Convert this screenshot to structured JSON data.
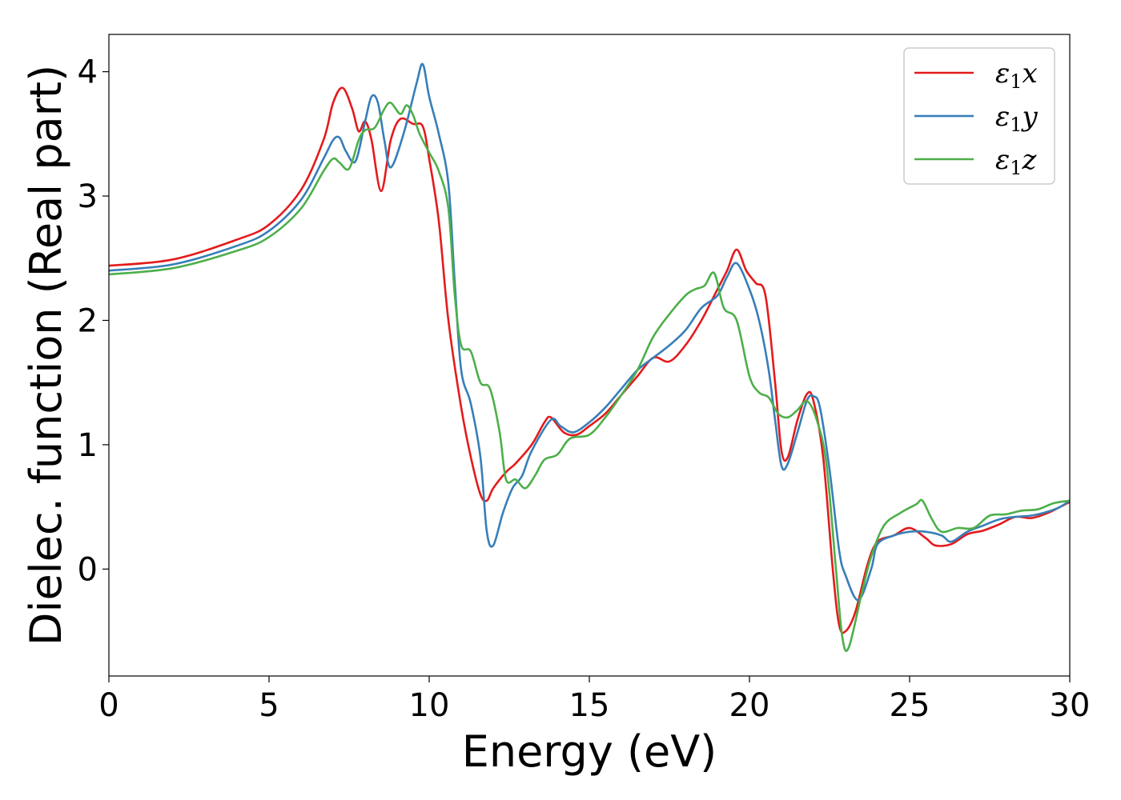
{
  "chart_data": {
    "type": "line",
    "title": "",
    "xlabel": "Energy (eV)",
    "ylabel": "Dielec. function (Real part)",
    "xlim": [
      0,
      30
    ],
    "ylim": [
      -0.86,
      4.3
    ],
    "xticks": [
      0,
      5,
      10,
      15,
      20,
      25,
      30
    ],
    "xtick_labels": [
      "0",
      "5",
      "10",
      "15",
      "20",
      "25",
      "30"
    ],
    "yticks": [
      0,
      1,
      2,
      3,
      4
    ],
    "ytick_labels": [
      "0",
      "1",
      "2",
      "3",
      "4"
    ],
    "grid": false,
    "legend": {
      "placement": "top-right"
    },
    "series": [
      {
        "name": "ε1x",
        "name_main": "ε",
        "name_sub": "1",
        "name_var": "x",
        "color": "#e41a1c",
        "points": [
          [
            0,
            2.44
          ],
          [
            2,
            2.49
          ],
          [
            4,
            2.65
          ],
          [
            5,
            2.77
          ],
          [
            6,
            3.05
          ],
          [
            6.7,
            3.45
          ],
          [
            7.0,
            3.75
          ],
          [
            7.3,
            3.87
          ],
          [
            7.6,
            3.7
          ],
          [
            7.8,
            3.52
          ],
          [
            8.0,
            3.6
          ],
          [
            8.2,
            3.45
          ],
          [
            8.5,
            3.04
          ],
          [
            8.8,
            3.45
          ],
          [
            9.1,
            3.62
          ],
          [
            9.5,
            3.58
          ],
          [
            9.8,
            3.56
          ],
          [
            10.0,
            3.3
          ],
          [
            10.3,
            2.8
          ],
          [
            10.6,
            2.0
          ],
          [
            11.0,
            1.3
          ],
          [
            11.3,
            0.9
          ],
          [
            11.6,
            0.6
          ],
          [
            11.8,
            0.55
          ],
          [
            12.0,
            0.65
          ],
          [
            12.4,
            0.78
          ],
          [
            12.7,
            0.85
          ],
          [
            13.2,
            1.0
          ],
          [
            13.6,
            1.18
          ],
          [
            13.8,
            1.22
          ],
          [
            14.2,
            1.1
          ],
          [
            14.6,
            1.08
          ],
          [
            15.0,
            1.15
          ],
          [
            15.5,
            1.25
          ],
          [
            16.0,
            1.4
          ],
          [
            16.5,
            1.55
          ],
          [
            17.0,
            1.7
          ],
          [
            17.5,
            1.67
          ],
          [
            18.0,
            1.8
          ],
          [
            18.5,
            2.0
          ],
          [
            19.0,
            2.25
          ],
          [
            19.3,
            2.4
          ],
          [
            19.6,
            2.57
          ],
          [
            19.9,
            2.4
          ],
          [
            20.2,
            2.3
          ],
          [
            20.5,
            2.2
          ],
          [
            20.8,
            1.5
          ],
          [
            21.0,
            0.95
          ],
          [
            21.2,
            0.9
          ],
          [
            21.5,
            1.2
          ],
          [
            21.8,
            1.41
          ],
          [
            22.0,
            1.35
          ],
          [
            22.3,
            0.9
          ],
          [
            22.6,
            0.0
          ],
          [
            22.8,
            -0.45
          ],
          [
            23.0,
            -0.5
          ],
          [
            23.3,
            -0.35
          ],
          [
            23.7,
            0.05
          ],
          [
            24.0,
            0.22
          ],
          [
            24.5,
            0.27
          ],
          [
            25.0,
            0.33
          ],
          [
            25.5,
            0.25
          ],
          [
            25.8,
            0.19
          ],
          [
            26.3,
            0.2
          ],
          [
            26.8,
            0.28
          ],
          [
            27.3,
            0.31
          ],
          [
            27.8,
            0.36
          ],
          [
            28.3,
            0.42
          ],
          [
            28.8,
            0.41
          ],
          [
            29.3,
            0.45
          ],
          [
            29.7,
            0.5
          ],
          [
            30.0,
            0.54
          ]
        ]
      },
      {
        "name": "ε1y",
        "name_main": "ε",
        "name_sub": "1",
        "name_var": "y",
        "color": "#377eb8",
        "points": [
          [
            0,
            2.4
          ],
          [
            2,
            2.45
          ],
          [
            4,
            2.6
          ],
          [
            5,
            2.72
          ],
          [
            6,
            2.97
          ],
          [
            6.7,
            3.3
          ],
          [
            7.0,
            3.45
          ],
          [
            7.2,
            3.47
          ],
          [
            7.4,
            3.36
          ],
          [
            7.7,
            3.28
          ],
          [
            8.0,
            3.6
          ],
          [
            8.2,
            3.8
          ],
          [
            8.4,
            3.75
          ],
          [
            8.6,
            3.45
          ],
          [
            8.8,
            3.23
          ],
          [
            9.2,
            3.5
          ],
          [
            9.6,
            3.9
          ],
          [
            9.8,
            4.06
          ],
          [
            10.0,
            3.8
          ],
          [
            10.3,
            3.5
          ],
          [
            10.6,
            3.1
          ],
          [
            10.8,
            2.3
          ],
          [
            11.0,
            1.6
          ],
          [
            11.3,
            1.33
          ],
          [
            11.6,
            0.9
          ],
          [
            11.8,
            0.3
          ],
          [
            12.0,
            0.19
          ],
          [
            12.3,
            0.45
          ],
          [
            12.6,
            0.65
          ],
          [
            12.9,
            0.75
          ],
          [
            13.2,
            0.95
          ],
          [
            13.8,
            1.2
          ],
          [
            14.1,
            1.15
          ],
          [
            14.5,
            1.1
          ],
          [
            15.0,
            1.18
          ],
          [
            15.5,
            1.3
          ],
          [
            16.0,
            1.45
          ],
          [
            16.5,
            1.6
          ],
          [
            17.0,
            1.7
          ],
          [
            17.5,
            1.8
          ],
          [
            18.0,
            1.92
          ],
          [
            18.5,
            2.1
          ],
          [
            19.0,
            2.2
          ],
          [
            19.3,
            2.35
          ],
          [
            19.6,
            2.46
          ],
          [
            20.0,
            2.25
          ],
          [
            20.3,
            2.0
          ],
          [
            20.6,
            1.6
          ],
          [
            20.8,
            1.2
          ],
          [
            21.0,
            0.83
          ],
          [
            21.2,
            0.85
          ],
          [
            21.5,
            1.1
          ],
          [
            21.8,
            1.36
          ],
          [
            22.0,
            1.39
          ],
          [
            22.2,
            1.3
          ],
          [
            22.5,
            0.8
          ],
          [
            22.8,
            0.15
          ],
          [
            23.0,
            -0.05
          ],
          [
            23.4,
            -0.25
          ],
          [
            23.8,
            0.0
          ],
          [
            24.0,
            0.2
          ],
          [
            24.5,
            0.27
          ],
          [
            25.0,
            0.3
          ],
          [
            25.5,
            0.3
          ],
          [
            26.0,
            0.27
          ],
          [
            26.3,
            0.22
          ],
          [
            26.8,
            0.3
          ],
          [
            27.3,
            0.35
          ],
          [
            27.8,
            0.4
          ],
          [
            28.3,
            0.42
          ],
          [
            28.8,
            0.43
          ],
          [
            29.3,
            0.46
          ],
          [
            29.7,
            0.5
          ],
          [
            30.0,
            0.55
          ]
        ]
      },
      {
        "name": "ε1z",
        "name_main": "ε",
        "name_sub": "1",
        "name_var": "z",
        "color": "#4daf4a",
        "points": [
          [
            0,
            2.37
          ],
          [
            2,
            2.42
          ],
          [
            4,
            2.56
          ],
          [
            5,
            2.67
          ],
          [
            6,
            2.9
          ],
          [
            6.7,
            3.2
          ],
          [
            7.0,
            3.3
          ],
          [
            7.2,
            3.27
          ],
          [
            7.5,
            3.22
          ],
          [
            7.8,
            3.45
          ],
          [
            8.0,
            3.53
          ],
          [
            8.3,
            3.55
          ],
          [
            8.6,
            3.7
          ],
          [
            8.8,
            3.75
          ],
          [
            9.1,
            3.66
          ],
          [
            9.3,
            3.73
          ],
          [
            9.5,
            3.65
          ],
          [
            9.7,
            3.5
          ],
          [
            10.0,
            3.35
          ],
          [
            10.3,
            3.2
          ],
          [
            10.6,
            2.9
          ],
          [
            10.8,
            2.2
          ],
          [
            11.0,
            1.8
          ],
          [
            11.3,
            1.75
          ],
          [
            11.6,
            1.5
          ],
          [
            11.9,
            1.45
          ],
          [
            12.2,
            1.1
          ],
          [
            12.4,
            0.72
          ],
          [
            12.7,
            0.72
          ],
          [
            13.0,
            0.65
          ],
          [
            13.3,
            0.75
          ],
          [
            13.6,
            0.88
          ],
          [
            14.0,
            0.92
          ],
          [
            14.4,
            1.05
          ],
          [
            15.0,
            1.08
          ],
          [
            15.5,
            1.22
          ],
          [
            16.0,
            1.4
          ],
          [
            16.5,
            1.6
          ],
          [
            17.0,
            1.87
          ],
          [
            17.5,
            2.05
          ],
          [
            18.0,
            2.2
          ],
          [
            18.3,
            2.25
          ],
          [
            18.6,
            2.28
          ],
          [
            18.9,
            2.38
          ],
          [
            19.2,
            2.1
          ],
          [
            19.6,
            2.0
          ],
          [
            20.0,
            1.55
          ],
          [
            20.3,
            1.42
          ],
          [
            20.6,
            1.38
          ],
          [
            20.9,
            1.25
          ],
          [
            21.2,
            1.22
          ],
          [
            21.5,
            1.28
          ],
          [
            21.8,
            1.35
          ],
          [
            22.1,
            1.2
          ],
          [
            22.4,
            0.85
          ],
          [
            22.7,
            0.0
          ],
          [
            22.9,
            -0.55
          ],
          [
            23.1,
            -0.63
          ],
          [
            23.5,
            -0.2
          ],
          [
            23.8,
            0.1
          ],
          [
            24.2,
            0.35
          ],
          [
            24.7,
            0.45
          ],
          [
            25.2,
            0.52
          ],
          [
            25.4,
            0.55
          ],
          [
            25.7,
            0.4
          ],
          [
            26.0,
            0.3
          ],
          [
            26.5,
            0.33
          ],
          [
            27.0,
            0.33
          ],
          [
            27.5,
            0.43
          ],
          [
            28.0,
            0.44
          ],
          [
            28.5,
            0.47
          ],
          [
            29.0,
            0.48
          ],
          [
            29.5,
            0.53
          ],
          [
            30.0,
            0.55
          ]
        ]
      }
    ]
  }
}
